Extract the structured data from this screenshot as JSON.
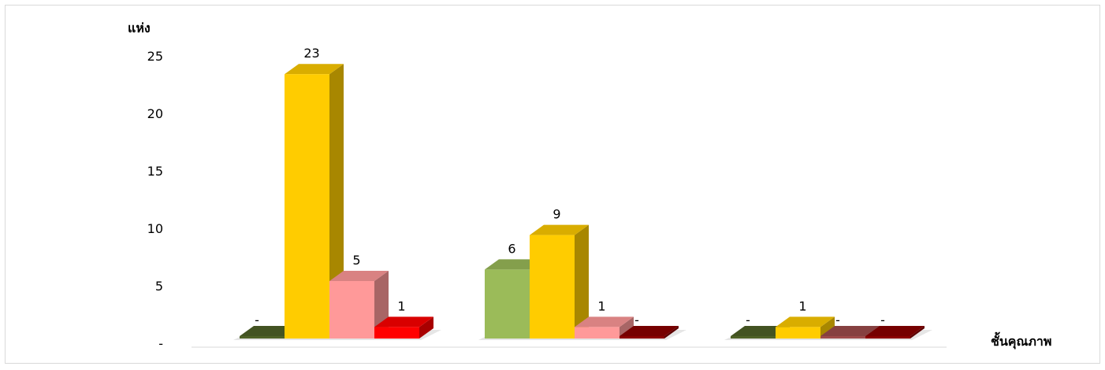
{
  "chart_data": {
    "type": "bar",
    "ylabel": "แห่ง",
    "xlabel": "ชั้นคุณภาพ",
    "ylim": [
      0,
      25
    ],
    "yticks": [
      "-",
      "5",
      "10",
      "15",
      "20",
      "25"
    ],
    "categories": [
      "",
      "",
      ""
    ],
    "grid": false,
    "style": "3d-clustered-column",
    "series": [
      {
        "color": "#9bbb59",
        "values": [
          0,
          6,
          0
        ],
        "labels": [
          "-",
          "6",
          "-"
        ]
      },
      {
        "color": "#ffcc00",
        "values": [
          23,
          9,
          1
        ],
        "labels": [
          "23",
          "9",
          "1"
        ]
      },
      {
        "color": "#ff9999",
        "values": [
          5,
          1,
          0
        ],
        "labels": [
          "5",
          "1",
          "-"
        ]
      },
      {
        "color": "#ff0000",
        "values": [
          1,
          0,
          0
        ],
        "labels": [
          "1",
          "-",
          "-"
        ]
      }
    ],
    "zero_value_colors": [
      "#4f6228",
      "#ffcc00",
      "#9e4b4b",
      "#8b0000"
    ]
  }
}
